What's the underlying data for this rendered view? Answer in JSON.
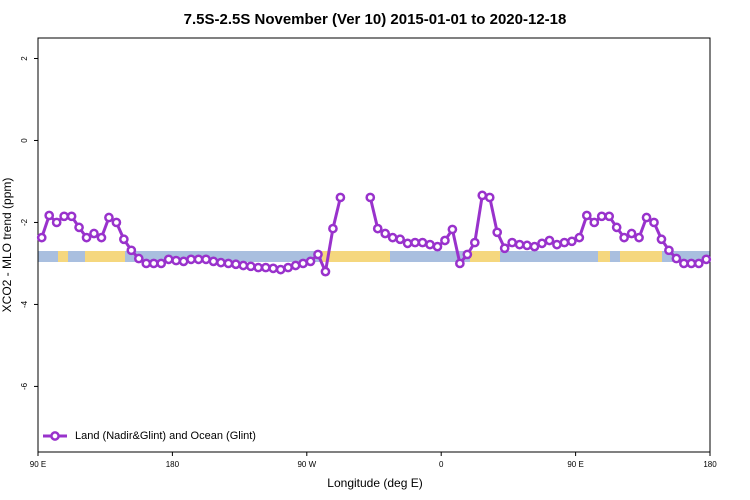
{
  "chart_data": {
    "type": "line",
    "title": "7.5S-2.5S November (Ver 10)   2015-01-01 to 2020-12-18",
    "x_label": "Longitude (deg E)",
    "y_label": "XCO2 - MLO trend (ppm)",
    "xlim": [
      90,
      540
    ],
    "xticks": [
      {
        "value": 90,
        "label": "90 E"
      },
      180,
      {
        "value": 270,
        "label": "90 W"
      },
      {
        "value": 360,
        "label": "0"
      },
      {
        "value": 450,
        "label": "90 E"
      },
      {
        "value": 540,
        "label": "180"
      }
    ],
    "ylim": [
      -7.6,
      2.5
    ],
    "yticks": [
      -6,
      -4,
      -2,
      0,
      2
    ],
    "legend": "bottom-left",
    "x": [
      92.5,
      97.5,
      102.5,
      107.5,
      112.5,
      117.5,
      122.5,
      127.5,
      132.5,
      137.5,
      142.5,
      147.5,
      152.5,
      157.5,
      162.5,
      167.5,
      172.5,
      177.5,
      182.5,
      187.5,
      192.5,
      197.5,
      202.5,
      207.5,
      212.5,
      217.5,
      222.5,
      227.5,
      232.5,
      237.5,
      242.5,
      247.5,
      252.5,
      257.5,
      262.5,
      267.5,
      272.5,
      277.5,
      282.5,
      287.5,
      292.5,
      297.5,
      302.5,
      307.5,
      312.5,
      317.5,
      322.5,
      327.5,
      332.5,
      337.5,
      342.5,
      347.5,
      352.5,
      357.5,
      362.5,
      367.5,
      372.5,
      377.5,
      382.5,
      387.5,
      392.5,
      397.5,
      402.5,
      407.5,
      412.5,
      417.5,
      422.5,
      427.5,
      432.5,
      437.5,
      442.5,
      447.5,
      452.5,
      457.5,
      462.5,
      467.5,
      472.5,
      477.5,
      482.5,
      487.5,
      492.5,
      497.5,
      502.5,
      507.5,
      512.5,
      517.5,
      522.5,
      527.5,
      532.5,
      537.5
    ],
    "series": [
      {
        "name": "Land (Nadir&Glint) and Ocean (Glint)",
        "color": "#9932cc",
        "values": [
          -2.37,
          -1.83,
          -2.0,
          -1.85,
          -1.85,
          -2.12,
          -2.37,
          -2.27,
          -2.37,
          -1.88,
          -2.0,
          -2.41,
          -2.68,
          -2.88,
          -3.0,
          -3.0,
          -3.0,
          -2.9,
          -2.93,
          -2.95,
          -2.9,
          -2.9,
          -2.9,
          -2.95,
          -2.98,
          -3.0,
          -3.02,
          -3.05,
          -3.07,
          -3.1,
          -3.1,
          -3.12,
          -3.15,
          -3.1,
          -3.05,
          -3.0,
          -2.95,
          -2.78,
          -3.2,
          -2.15,
          -1.39,
          null,
          null,
          null,
          -1.39,
          -2.15,
          -2.27,
          -2.37,
          -2.41,
          -2.51,
          -2.49,
          -2.49,
          -2.54,
          -2.59,
          -2.44,
          -2.17,
          -3.0,
          -2.78,
          -2.49,
          -1.34,
          -1.39,
          -2.24,
          -2.63,
          -2.49,
          -2.54,
          -2.56,
          -2.59,
          -2.51,
          -2.44,
          -2.54,
          -2.49,
          -2.46,
          -2.37,
          -1.83,
          -2.0,
          -1.85,
          -1.85,
          -2.12,
          -2.37,
          -2.27,
          -2.37,
          -1.88,
          -2.0,
          -2.41,
          -2.68,
          -2.88,
          -3.0,
          -3.0,
          -3.0,
          -2.9
        ]
      }
    ]
  }
}
